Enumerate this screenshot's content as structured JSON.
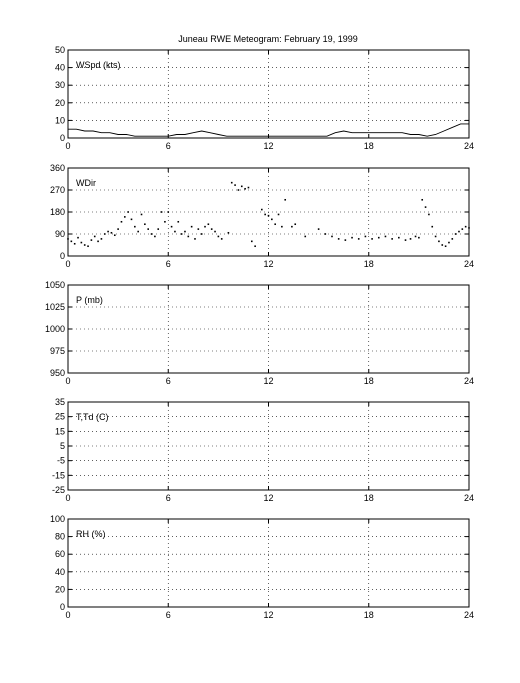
{
  "figure": {
    "title": "Juneau RWE Meteogram:  February 19, 1999",
    "background": "#ffffff",
    "ink_color": "#000000"
  },
  "chart_data": [
    {
      "type": "line",
      "label": "WSpd (kts)",
      "xlim": [
        0,
        24
      ],
      "ylim": [
        0,
        50
      ],
      "xticks": [
        0,
        6,
        12,
        18,
        24
      ],
      "yticks": [
        0,
        10,
        20,
        30,
        40,
        50
      ],
      "grid": true,
      "series": [
        {
          "x": [
            0,
            0.5,
            1,
            1.5,
            2,
            2.5,
            3,
            3.5,
            4,
            4.5,
            5,
            5.5,
            6,
            6.5,
            7,
            7.5,
            8,
            8.5,
            9,
            9.5,
            10,
            10.5,
            11,
            11.5,
            12,
            12.5,
            13,
            13.5,
            14,
            14.5,
            15,
            15.5,
            16,
            16.5,
            17,
            17.5,
            18,
            18.5,
            19,
            19.5,
            20,
            20.5,
            21,
            21.5,
            22,
            22.5,
            23,
            23.5,
            24
          ],
          "values": [
            5,
            5,
            4,
            4,
            3,
            3,
            2,
            2,
            1,
            1,
            1,
            1,
            1,
            2,
            2,
            3,
            4,
            3,
            2,
            1,
            1,
            1,
            1,
            1,
            1,
            1,
            1,
            1,
            1,
            1,
            1,
            1,
            3,
            4,
            3,
            3,
            3,
            3,
            3,
            3,
            3,
            2,
            2,
            1,
            2,
            4,
            6,
            8,
            8
          ]
        }
      ]
    },
    {
      "type": "scatter",
      "label": "WDir",
      "xlim": [
        0,
        24
      ],
      "ylim": [
        0,
        360
      ],
      "xticks": [
        0,
        6,
        12,
        18,
        24
      ],
      "yticks": [
        0,
        90,
        180,
        270,
        360
      ],
      "grid": true,
      "series": [
        {
          "x": [
            0,
            0.2,
            0.4,
            0.6,
            0.8,
            1,
            1.2,
            1.4,
            1.6,
            1.8,
            2,
            2.2,
            2.4,
            2.6,
            2.8,
            3,
            3.2,
            3.4,
            3.6,
            3.8,
            4,
            4.2,
            4.4,
            4.6,
            4.8,
            5,
            5.2,
            5.4,
            5.6,
            5.8,
            6,
            6.2,
            6.4,
            6.6,
            6.8,
            7,
            7.2,
            7.4,
            7.6,
            7.8,
            8,
            8.2,
            8.4,
            8.6,
            8.8,
            9,
            9.2,
            9.6,
            9.8,
            10,
            10.2,
            10.4,
            10.6,
            10.8,
            11,
            11.2,
            11.6,
            11.8,
            12,
            12.2,
            12.4,
            12.6,
            12.8,
            13,
            13.4,
            13.6,
            14.2,
            15,
            15.4,
            15.8,
            16.2,
            16.6,
            17,
            17.4,
            17.8,
            18.2,
            18.6,
            19,
            19.4,
            19.8,
            20.2,
            20.5,
            20.8,
            21,
            21.2,
            21.4,
            21.6,
            21.8,
            22,
            22.2,
            22.4,
            22.6,
            22.8,
            23,
            23.2,
            23.4,
            23.6,
            23.8,
            24
          ],
          "values": [
            70,
            60,
            50,
            75,
            55,
            45,
            40,
            65,
            80,
            60,
            70,
            90,
            100,
            95,
            85,
            110,
            140,
            160,
            180,
            150,
            120,
            100,
            170,
            130,
            110,
            90,
            80,
            110,
            180,
            140,
            180,
            120,
            100,
            140,
            90,
            100,
            80,
            120,
            70,
            110,
            90,
            120,
            130,
            110,
            100,
            80,
            70,
            95,
            300,
            290,
            270,
            285,
            275,
            280,
            60,
            40,
            190,
            170,
            165,
            150,
            130,
            170,
            120,
            230,
            120,
            130,
            80,
            110,
            90,
            80,
            70,
            65,
            75,
            70,
            80,
            70,
            75,
            80,
            70,
            75,
            65,
            70,
            80,
            75,
            230,
            200,
            170,
            120,
            80,
            60,
            45,
            40,
            55,
            70,
            90,
            100,
            110,
            120,
            115
          ]
        }
      ]
    },
    {
      "type": "line",
      "label": "P (mb)",
      "xlim": [
        0,
        24
      ],
      "ylim": [
        950,
        1050
      ],
      "xticks": [
        0,
        6,
        12,
        18,
        24
      ],
      "yticks": [
        950,
        975,
        1000,
        1025,
        1050
      ],
      "grid": true,
      "series": []
    },
    {
      "type": "line",
      "label": "T,Td (C)",
      "xlim": [
        0,
        24
      ],
      "ylim": [
        -25,
        35
      ],
      "xticks": [
        0,
        6,
        12,
        18,
        24
      ],
      "yticks": [
        -25,
        -15,
        -5,
        5,
        15,
        25,
        35
      ],
      "grid": true,
      "series": []
    },
    {
      "type": "line",
      "label": "RH (%)",
      "xlim": [
        0,
        24
      ],
      "ylim": [
        0,
        100
      ],
      "xticks": [
        0,
        6,
        12,
        18,
        24
      ],
      "yticks": [
        0,
        20,
        40,
        60,
        80,
        100
      ],
      "grid": true,
      "series": []
    }
  ]
}
